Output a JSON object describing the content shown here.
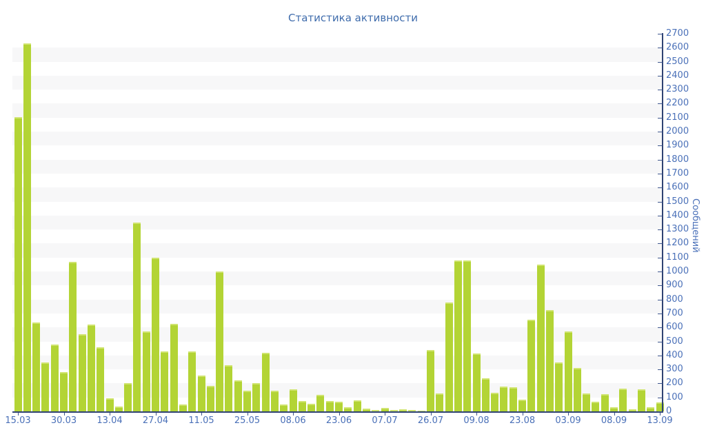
{
  "title": "Статистика активности",
  "colors": {
    "title": "#3f6cac",
    "label": "#4a70b8",
    "axis_line": "#2e4272",
    "tick": "#3d558c",
    "bar": "#b3d435",
    "bar_top": "#d0e470",
    "band": "#f7f7f8"
  },
  "chart_data": {
    "type": "bar",
    "title": "Статистика активности",
    "xlabel": "",
    "ylabel": "Сообщений",
    "ylim": [
      0,
      2700
    ],
    "y_tick_step": 100,
    "y_tick_labels": [
      "0",
      "100",
      "200",
      "300",
      "400",
      "500",
      "600",
      "700",
      "800",
      "900",
      "1000",
      "1100",
      "1200",
      "1300",
      "1400",
      "1500",
      "1600",
      "1700",
      "1800",
      "1900",
      "2000",
      "2100",
      "2200",
      "2300",
      "2400",
      "2500",
      "2600",
      "2700"
    ],
    "x_tick_labels": [
      "15.03",
      "30.03",
      "13.04",
      "27.04",
      "11.05",
      "25.05",
      "08.06",
      "23.06",
      "07.07",
      "26.07",
      "09.08",
      "23.08",
      "03.09",
      "08.09",
      "13.09"
    ],
    "x_label_every_n_bars": 5,
    "bar_count": 71,
    "legend": "none",
    "grid": "alternating horizontal gray bands at 100-200, 300-400, ... 2500-2600; y axis on right side",
    "values": [
      2105,
      2630,
      635,
      350,
      480,
      280,
      1070,
      550,
      620,
      460,
      95,
      35,
      200,
      1350,
      570,
      1100,
      430,
      625,
      50,
      430,
      255,
      180,
      1000,
      330,
      220,
      150,
      200,
      420,
      150,
      50,
      160,
      75,
      55,
      120,
      75,
      70,
      30,
      80,
      18,
      10,
      25,
      12,
      15,
      10,
      5,
      440,
      130,
      780,
      1080,
      1080,
      415,
      235,
      135,
      175,
      170,
      85,
      655,
      1050,
      725,
      350,
      572,
      310,
      130,
      67,
      125,
      28,
      165,
      15,
      158,
      30,
      65
    ]
  }
}
